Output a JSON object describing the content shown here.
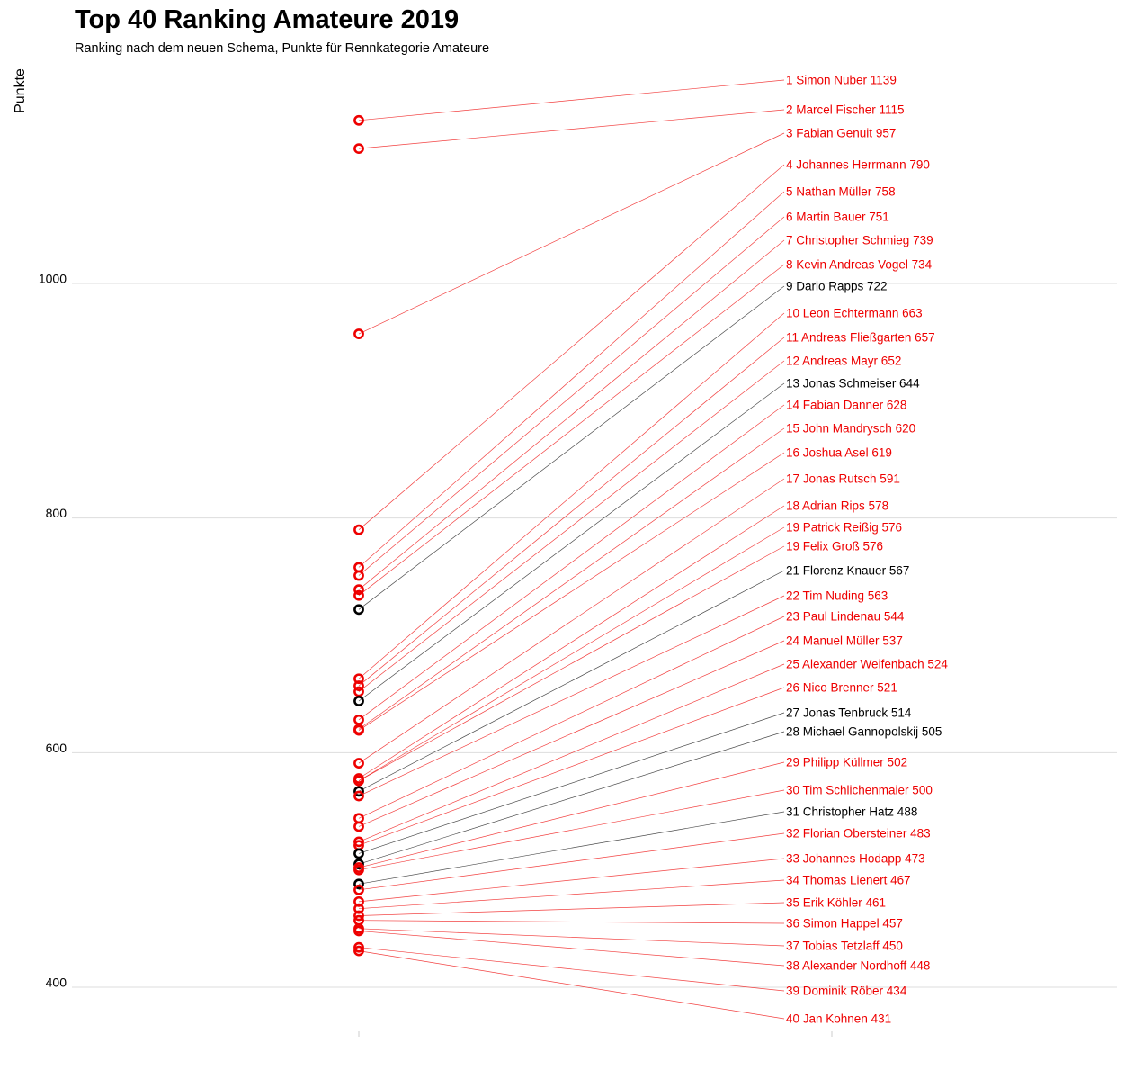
{
  "chart_data": {
    "type": "line",
    "title": "Top 40 Ranking Amateure 2019",
    "subtitle": "Ranking nach dem neuen Schema, Punkte für Rennkategorie Amateure",
    "ylabel": "Punkte",
    "xlabel": "",
    "ylim": [
      375,
      1200
    ],
    "yticks": [
      400,
      600,
      800,
      1000
    ],
    "grid": true,
    "legend": "none",
    "colors": {
      "highlight": "#ee0000",
      "normal": "#000000",
      "grid": "#dddddd"
    },
    "series": [
      {
        "rank": "1",
        "name": "Simon Nuber",
        "points": 1139,
        "label": "1 Simon Nuber 1139",
        "highlight": true
      },
      {
        "rank": "2",
        "name": "Marcel Fischer",
        "points": 1115,
        "label": "2 Marcel Fischer 1115",
        "highlight": true
      },
      {
        "rank": "3",
        "name": "Fabian Genuit",
        "points": 957,
        "label": "3 Fabian Genuit 957",
        "highlight": true
      },
      {
        "rank": "4",
        "name": "Johannes Herrmann",
        "points": 790,
        "label": "4 Johannes Herrmann 790",
        "highlight": true
      },
      {
        "rank": "5",
        "name": "Nathan Müller",
        "points": 758,
        "label": "5 Nathan Müller 758",
        "highlight": true
      },
      {
        "rank": "6",
        "name": "Martin Bauer",
        "points": 751,
        "label": "6 Martin Bauer 751",
        "highlight": true
      },
      {
        "rank": "7",
        "name": "Christopher Schmieg",
        "points": 739,
        "label": "7 Christopher Schmieg 739",
        "highlight": true
      },
      {
        "rank": "8",
        "name": "Kevin Andreas Vogel",
        "points": 734,
        "label": "8 Kevin Andreas Vogel 734",
        "highlight": true
      },
      {
        "rank": "9",
        "name": "Dario Rapps",
        "points": 722,
        "label": "9 Dario Rapps 722",
        "highlight": false
      },
      {
        "rank": "10",
        "name": "Leon Echtermann",
        "points": 663,
        "label": "10 Leon Echtermann 663",
        "highlight": true
      },
      {
        "rank": "11",
        "name": "Andreas Fließgarten",
        "points": 657,
        "label": "11 Andreas Fließgarten 657",
        "highlight": true
      },
      {
        "rank": "12",
        "name": "Andreas Mayr",
        "points": 652,
        "label": "12 Andreas Mayr 652",
        "highlight": true
      },
      {
        "rank": "13",
        "name": "Jonas Schmeiser",
        "points": 644,
        "label": "13 Jonas Schmeiser 644",
        "highlight": false
      },
      {
        "rank": "14",
        "name": "Fabian Danner",
        "points": 628,
        "label": "14 Fabian Danner 628",
        "highlight": true
      },
      {
        "rank": "15",
        "name": "John Mandrysch",
        "points": 620,
        "label": "15 John Mandrysch 620",
        "highlight": true
      },
      {
        "rank": "16",
        "name": "Joshua Asel",
        "points": 619,
        "label": "16 Joshua Asel 619",
        "highlight": true
      },
      {
        "rank": "17",
        "name": "Jonas Rutsch",
        "points": 591,
        "label": "17 Jonas Rutsch 591",
        "highlight": true
      },
      {
        "rank": "18",
        "name": "Adrian Rips",
        "points": 578,
        "label": "18 Adrian Rips 578",
        "highlight": true
      },
      {
        "rank": "19",
        "name": "Patrick Reißig",
        "points": 576,
        "label": "19 Patrick Reißig 576",
        "highlight": true
      },
      {
        "rank": "19",
        "name": "Felix Groß",
        "points": 576,
        "label": "19 Felix Groß 576",
        "highlight": true
      },
      {
        "rank": "21",
        "name": "Florenz Knauer",
        "points": 567,
        "label": "21 Florenz Knauer 567",
        "highlight": false
      },
      {
        "rank": "22",
        "name": "Tim Nuding",
        "points": 563,
        "label": "22 Tim Nuding 563",
        "highlight": true
      },
      {
        "rank": "23",
        "name": "Paul Lindenau",
        "points": 544,
        "label": "23 Paul Lindenau 544",
        "highlight": true
      },
      {
        "rank": "24",
        "name": "Manuel Müller",
        "points": 537,
        "label": "24 Manuel Müller 537",
        "highlight": true
      },
      {
        "rank": "25",
        "name": "Alexander Weifenbach",
        "points": 524,
        "label": "25 Alexander Weifenbach 524",
        "highlight": true
      },
      {
        "rank": "26",
        "name": "Nico Brenner",
        "points": 521,
        "label": "26 Nico Brenner 521",
        "highlight": true
      },
      {
        "rank": "27",
        "name": "Jonas Tenbruck",
        "points": 514,
        "label": "27 Jonas Tenbruck 514",
        "highlight": false
      },
      {
        "rank": "28",
        "name": "Michael Gannopolskij",
        "points": 505,
        "label": "28 Michael Gannopolskij 505",
        "highlight": false
      },
      {
        "rank": "29",
        "name": "Philipp Küllmer",
        "points": 502,
        "label": "29 Philipp Küllmer 502",
        "highlight": true
      },
      {
        "rank": "30",
        "name": "Tim Schlichenmaier",
        "points": 500,
        "label": "30 Tim Schlichenmaier 500",
        "highlight": true
      },
      {
        "rank": "31",
        "name": "Christopher Hatz",
        "points": 488,
        "label": "31 Christopher Hatz 488",
        "highlight": false
      },
      {
        "rank": "32",
        "name": "Florian Obersteiner",
        "points": 483,
        "label": "32 Florian Obersteiner 483",
        "highlight": true
      },
      {
        "rank": "33",
        "name": "Johannes Hodapp",
        "points": 473,
        "label": "33 Johannes Hodapp 473",
        "highlight": true
      },
      {
        "rank": "34",
        "name": "Thomas Lienert",
        "points": 467,
        "label": "34 Thomas Lienert 467",
        "highlight": true
      },
      {
        "rank": "35",
        "name": "Erik Köhler",
        "points": 461,
        "label": "35 Erik Köhler 461",
        "highlight": true
      },
      {
        "rank": "36",
        "name": "Simon Happel",
        "points": 457,
        "label": "36 Simon Happel 457",
        "highlight": true
      },
      {
        "rank": "37",
        "name": "Tobias Tetzlaff",
        "points": 450,
        "label": "37 Tobias Tetzlaff 450",
        "highlight": true
      },
      {
        "rank": "38",
        "name": "Alexander Nordhoff",
        "points": 448,
        "label": "38 Alexander Nordhoff 448",
        "highlight": true
      },
      {
        "rank": "39",
        "name": "Dominik Röber",
        "points": 434,
        "label": "39 Dominik Röber 434",
        "highlight": true
      },
      {
        "rank": "40",
        "name": "Jan Kohnen",
        "points": 431,
        "label": "40 Jan Kohnen 431",
        "highlight": true
      }
    ]
  }
}
